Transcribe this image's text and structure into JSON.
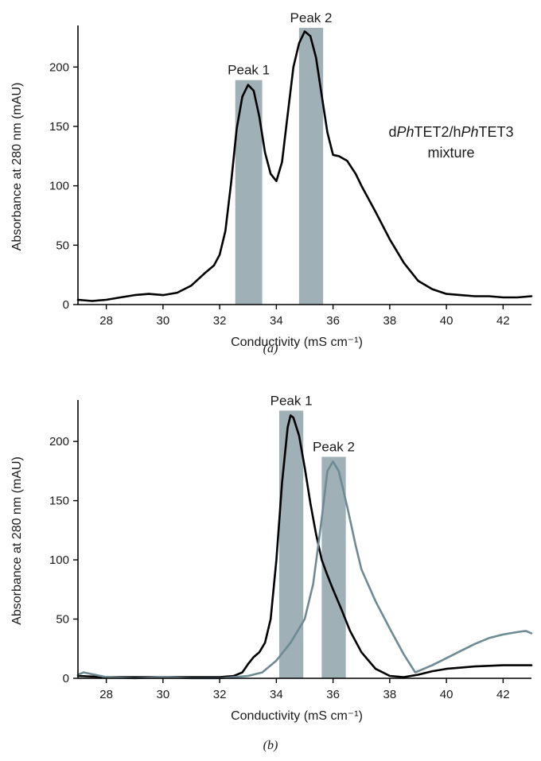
{
  "chart_data": [
    {
      "type": "line",
      "panel_label": "(a)",
      "xlabel": "Conductivity (mS cm⁻¹)",
      "ylabel": "Absorbance at 280 nm (mAU)",
      "xlim": [
        27,
        43
      ],
      "ylim": [
        0,
        235
      ],
      "xticks": [
        28,
        30,
        32,
        34,
        36,
        38,
        40,
        42
      ],
      "yticks": [
        0,
        50,
        100,
        150,
        200
      ],
      "annotation": {
        "prefix": "d",
        "ph1": "Ph",
        "mid": "TET2/h",
        "ph2": "Ph",
        "suffix": "TET3",
        "line2": "mixture"
      },
      "peaks": [
        {
          "label": "Peak 1",
          "x_range": [
            32.55,
            33.5
          ],
          "top": 189
        },
        {
          "label": "Peak 2",
          "x_range": [
            34.8,
            35.65
          ],
          "top": 233
        }
      ],
      "series": [
        {
          "color": "#000000",
          "x": [
            27.0,
            27.5,
            28.0,
            28.5,
            29.0,
            29.5,
            30.0,
            30.5,
            31.0,
            31.5,
            31.8,
            32.0,
            32.2,
            32.4,
            32.6,
            32.8,
            33.0,
            33.2,
            33.4,
            33.6,
            33.8,
            34.0,
            34.2,
            34.4,
            34.6,
            34.8,
            35.0,
            35.2,
            35.4,
            35.6,
            35.8,
            36.0,
            36.2,
            36.5,
            36.8,
            37.0,
            37.5,
            38.0,
            38.5,
            39.0,
            39.5,
            40.0,
            40.5,
            41.0,
            41.5,
            42.0,
            42.5,
            43.0
          ],
          "y": [
            4,
            3,
            4,
            6,
            8,
            9,
            8,
            10,
            16,
            27,
            33,
            42,
            62,
            102,
            148,
            175,
            185,
            180,
            158,
            128,
            110,
            104,
            120,
            160,
            200,
            220,
            230,
            226,
            208,
            176,
            145,
            126,
            125,
            121,
            110,
            100,
            78,
            55,
            35,
            20,
            13,
            9,
            8,
            7,
            7,
            6,
            6,
            7
          ]
        }
      ]
    },
    {
      "type": "line",
      "panel_label": "(b)",
      "xlabel": "Conductivity (mS cm⁻¹)",
      "ylabel": "Absorbance at 280 nm (mAU)",
      "xlim": [
        27,
        43
      ],
      "ylim": [
        0,
        235
      ],
      "xticks": [
        28,
        30,
        32,
        34,
        36,
        38,
        40,
        42
      ],
      "yticks": [
        0,
        50,
        100,
        150,
        200
      ],
      "peaks": [
        {
          "label": "Peak 1",
          "x_range": [
            34.1,
            34.95
          ],
          "top": 226
        },
        {
          "label": "Peak 2",
          "x_range": [
            35.6,
            36.45
          ],
          "top": 187
        }
      ],
      "series": [
        {
          "color": "#000000",
          "x": [
            27.0,
            28.0,
            29.0,
            30.0,
            31.0,
            32.0,
            32.5,
            32.8,
            33.0,
            33.2,
            33.4,
            33.6,
            33.8,
            34.0,
            34.2,
            34.4,
            34.5,
            34.6,
            34.8,
            35.0,
            35.2,
            35.4,
            35.6,
            35.8,
            36.0,
            36.3,
            36.6,
            37.0,
            37.5,
            38.0,
            38.5,
            39.0,
            39.5,
            40.0,
            41.0,
            42.0,
            43.0
          ],
          "y": [
            2,
            1,
            1,
            1,
            1,
            1,
            2,
            5,
            12,
            18,
            22,
            30,
            50,
            100,
            165,
            212,
            222,
            220,
            205,
            178,
            148,
            122,
            100,
            87,
            75,
            58,
            40,
            22,
            8,
            2,
            1,
            3,
            6,
            8,
            10,
            11,
            11
          ]
        },
        {
          "color": "#6e8a94",
          "x": [
            27.0,
            27.2,
            28.0,
            29.0,
            30.0,
            31.0,
            32.0,
            33.0,
            33.5,
            34.0,
            34.5,
            35.0,
            35.3,
            35.6,
            35.8,
            36.0,
            36.2,
            36.5,
            36.8,
            37.0,
            37.5,
            38.0,
            38.5,
            38.9,
            39.2,
            39.5,
            40.0,
            40.5,
            41.0,
            41.5,
            42.0,
            42.5,
            42.8,
            43.0
          ],
          "y": [
            3,
            5,
            1,
            0,
            1,
            0,
            0,
            2,
            5,
            15,
            30,
            50,
            80,
            135,
            175,
            183,
            175,
            145,
            112,
            92,
            65,
            42,
            20,
            5,
            8,
            11,
            17,
            23,
            29,
            34,
            37,
            39,
            40,
            38
          ]
        }
      ]
    }
  ]
}
